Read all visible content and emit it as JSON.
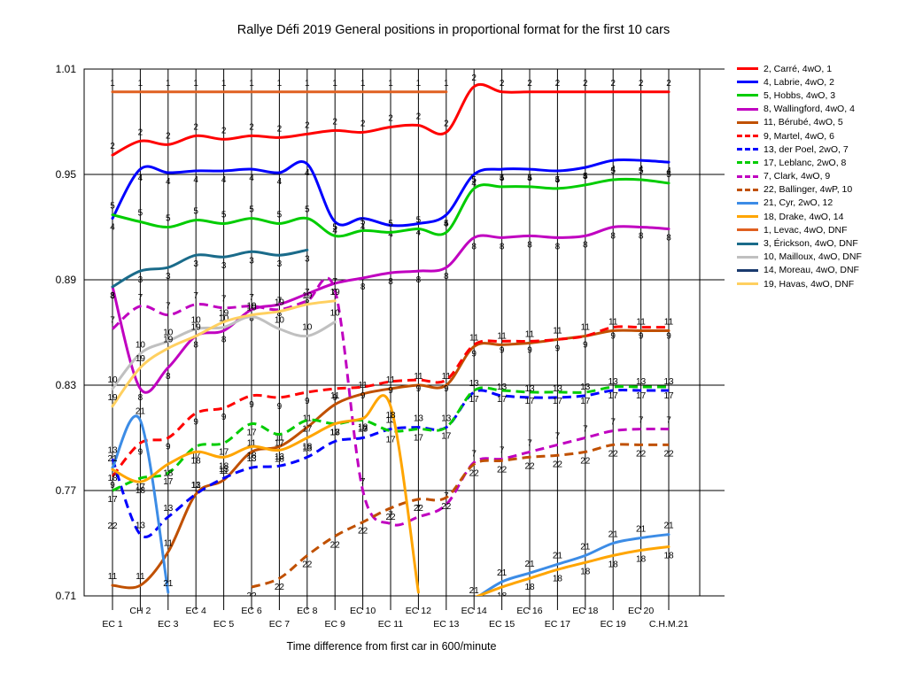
{
  "chart_data": {
    "type": "line",
    "title": "Rallye Défi 2019  General positions in proportional format for the first 10 cars",
    "xlabel": "Time difference from first car in 600/minute",
    "ylabel": "",
    "ylim": [
      0.71,
      1.01
    ],
    "y_ticks": [
      "1.01",
      "0.95",
      "0.89",
      "0.83",
      "0.77",
      "0.71"
    ],
    "categories": [
      "EC 1",
      "CH 2",
      "EC 3",
      "EC 4",
      "EC 5",
      "EC 6",
      "EC 7",
      "EC 8",
      "EC 9",
      "EC 10",
      "EC 11",
      "EC 12",
      "EC 13",
      "EC 14",
      "EC 15",
      "EC 16",
      "EC 17",
      "EC 18",
      "EC 19",
      "EC 20",
      "C.H.M.21"
    ],
    "grid": true,
    "legend_position": "right",
    "series": [
      {
        "name": "2, Carré, 4wO, 1",
        "color": "#ff0000",
        "dash": "solid",
        "label": "2",
        "values": [
          0.961,
          0.969,
          0.967,
          0.972,
          0.97,
          0.972,
          0.971,
          0.973,
          0.975,
          0.974,
          0.977,
          0.978,
          0.974,
          1.0,
          0.997,
          0.997,
          0.997,
          0.997,
          0.997,
          0.997,
          0.997
        ]
      },
      {
        "name": "4, Labrie, 4wO, 2",
        "color": "#0000ff",
        "dash": "solid",
        "label": "4",
        "values": [
          0.925,
          0.953,
          0.951,
          0.952,
          0.952,
          0.953,
          0.951,
          0.956,
          0.923,
          0.925,
          0.921,
          0.922,
          0.927,
          0.95,
          0.953,
          0.953,
          0.952,
          0.954,
          0.958,
          0.958,
          0.957
        ]
      },
      {
        "name": "5, Hobbs, 4wO, 3",
        "color": "#00cc00",
        "dash": "solid",
        "label": "5",
        "values": [
          0.927,
          0.923,
          0.92,
          0.924,
          0.922,
          0.925,
          0.922,
          0.925,
          0.915,
          0.918,
          0.917,
          0.919,
          0.917,
          0.942,
          0.943,
          0.943,
          0.942,
          0.944,
          0.947,
          0.947,
          0.945
        ]
      },
      {
        "name": "8, Wallingford, 4wO, 4",
        "color": "#c000c0",
        "dash": "solid",
        "label": "8",
        "values": [
          0.886,
          0.828,
          0.84,
          0.858,
          0.861,
          0.873,
          0.876,
          0.882,
          0.888,
          0.891,
          0.894,
          0.895,
          0.897,
          0.914,
          0.914,
          0.915,
          0.914,
          0.915,
          0.92,
          0.92,
          0.919
        ]
      },
      {
        "name": "11, Bérubé, 4wO, 5",
        "color": "#c05000",
        "dash": "solid",
        "label": "11",
        "values": [
          0.716,
          0.716,
          0.735,
          0.768,
          0.776,
          0.792,
          0.795,
          0.806,
          0.819,
          0.825,
          0.828,
          0.83,
          0.83,
          0.852,
          0.853,
          0.854,
          0.856,
          0.858,
          0.861,
          0.861,
          0.861
        ]
      },
      {
        "name": "9, Martel, 4wO, 6",
        "color": "#ff0000",
        "dash": "dashed",
        "label": "9",
        "values": [
          0.778,
          0.797,
          0.8,
          0.814,
          0.817,
          0.824,
          0.823,
          0.826,
          0.828,
          0.829,
          0.832,
          0.833,
          0.833,
          0.853,
          0.855,
          0.855,
          0.856,
          0.858,
          0.863,
          0.863,
          0.863
        ]
      },
      {
        "name": "13, der Poel, 2wO, 7",
        "color": "#0000ff",
        "dash": "dashed",
        "label": "13",
        "values": [
          0.788,
          0.745,
          0.755,
          0.768,
          0.777,
          0.783,
          0.784,
          0.789,
          0.798,
          0.8,
          0.805,
          0.806,
          0.806,
          0.826,
          0.824,
          0.823,
          0.823,
          0.824,
          0.827,
          0.827,
          0.827
        ]
      },
      {
        "name": "17, Leblanc, 2wO, 8",
        "color": "#00cc00",
        "dash": "dashed",
        "label": "17",
        "values": [
          0.77,
          0.777,
          0.78,
          0.795,
          0.797,
          0.808,
          0.802,
          0.81,
          0.808,
          0.81,
          0.804,
          0.805,
          0.806,
          0.827,
          0.827,
          0.826,
          0.826,
          0.826,
          0.829,
          0.829,
          0.829
        ]
      },
      {
        "name": "7, Clark, 4wO, 9",
        "color": "#c000c0",
        "dash": "dashed",
        "label": "7",
        "values": [
          0.862,
          0.875,
          0.87,
          0.876,
          0.874,
          0.875,
          0.873,
          0.878,
          0.884,
          0.77,
          0.751,
          0.755,
          0.762,
          0.786,
          0.788,
          0.792,
          0.796,
          0.8,
          0.804,
          0.805,
          0.805
        ]
      },
      {
        "name": "22, Ballinger, 4wP, 10",
        "color": "#c05000",
        "dash": "dashed",
        "label": "22",
        "values": [
          0.755,
          null,
          null,
          null,
          null,
          0.715,
          0.72,
          0.733,
          0.744,
          0.752,
          0.76,
          0.765,
          0.766,
          0.785,
          0.787,
          0.789,
          0.79,
          0.792,
          0.796,
          0.796,
          0.796
        ]
      },
      {
        "name": "21, Cyr, 2wO, 12",
        "color": "#3c8ce6",
        "dash": "solid",
        "label": "21",
        "values": [
          0.783,
          0.81,
          0.712,
          null,
          null,
          null,
          null,
          null,
          null,
          null,
          null,
          null,
          null,
          0.708,
          0.718,
          0.723,
          0.728,
          0.733,
          0.74,
          0.743,
          0.745
        ]
      },
      {
        "name": "18, Drake, 4wO, 14",
        "color": "#ffa500",
        "dash": "solid",
        "label": "18",
        "values": [
          0.782,
          0.775,
          0.785,
          0.792,
          0.789,
          0.795,
          0.793,
          0.8,
          0.808,
          0.811,
          0.818,
          0.712,
          null,
          0.709,
          0.715,
          0.72,
          0.725,
          0.729,
          0.733,
          0.736,
          0.738
        ]
      },
      {
        "name": "1, Levac, 4wO, DNF",
        "color": "#e06020",
        "dash": "solid",
        "label": "1",
        "values": [
          0.997,
          0.997,
          0.997,
          0.997,
          0.997,
          0.997,
          0.997,
          0.997,
          0.997,
          0.997,
          0.997,
          0.997,
          0.997,
          null,
          null,
          null,
          null,
          null,
          null,
          null,
          null
        ]
      },
      {
        "name": "3, Érickson, 4wO, DNF",
        "color": "#1a6b8a",
        "dash": "solid",
        "label": "3",
        "values": [
          0.886,
          0.895,
          0.897,
          0.904,
          0.903,
          0.906,
          0.904,
          0.907,
          null,
          null,
          null,
          null,
          null,
          null,
          null,
          null,
          null,
          null,
          null,
          null,
          null
        ]
      },
      {
        "name": "10, Mailloux, 4wO, DNF",
        "color": "#c0c0c0",
        "dash": "solid",
        "label": "10",
        "values": [
          0.828,
          0.848,
          0.855,
          0.862,
          0.863,
          0.869,
          0.862,
          0.858,
          0.866,
          null,
          null,
          null,
          null,
          null,
          null,
          null,
          null,
          null,
          null,
          null,
          null
        ]
      },
      {
        "name": "14, Moreau, 4wO, DNF",
        "color": "#1a3a6e",
        "dash": "solid",
        "label": "14",
        "values": [
          null,
          null,
          null,
          null,
          null,
          null,
          null,
          null,
          null,
          null,
          null,
          null,
          null,
          null,
          null,
          null,
          null,
          null,
          null,
          null,
          null
        ]
      },
      {
        "name": "19, Havas, 4wO, DNF",
        "color": "#ffd060",
        "dash": "solid",
        "label": "19",
        "values": [
          0.818,
          0.84,
          0.851,
          0.858,
          0.866,
          0.87,
          0.872,
          0.876,
          0.878,
          null,
          null,
          null,
          null,
          null,
          null,
          null,
          null,
          null,
          null,
          null,
          null
        ]
      }
    ]
  }
}
